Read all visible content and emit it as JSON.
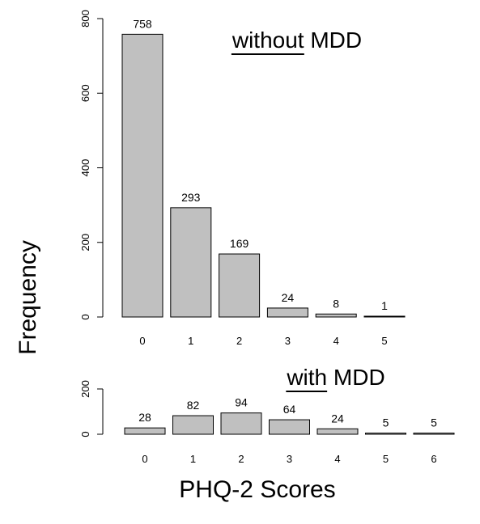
{
  "figure": {
    "ylabel": "Frequency",
    "xlabel": "PHQ-2 Scores",
    "bar_color": "#c0c0c0",
    "edge_color": "#000000"
  },
  "chart_data": [
    {
      "type": "bar",
      "title_underlined": "without",
      "title_rest": "MDD",
      "categories": [
        "0",
        "1",
        "2",
        "3",
        "4",
        "5"
      ],
      "values": [
        758,
        293,
        169,
        24,
        8,
        1
      ],
      "data_labels": [
        "758",
        "293",
        "169",
        "24",
        "8",
        "1"
      ],
      "yticks": [
        0,
        200,
        400,
        600,
        800
      ],
      "ytick_labels": [
        "0",
        "200",
        "400",
        "600",
        "800"
      ],
      "ylim": [
        0,
        800
      ]
    },
    {
      "type": "bar",
      "title_underlined": "with",
      "title_rest": "MDD",
      "categories": [
        "0",
        "1",
        "2",
        "3",
        "4",
        "5",
        "6"
      ],
      "values": [
        28,
        82,
        94,
        64,
        24,
        5,
        5
      ],
      "data_labels": [
        "28",
        "82",
        "94",
        "64",
        "24",
        "5",
        "5"
      ],
      "yticks": [
        0,
        200
      ],
      "ytick_labels": [
        "0",
        "200"
      ],
      "ylim": [
        0,
        200
      ]
    }
  ]
}
